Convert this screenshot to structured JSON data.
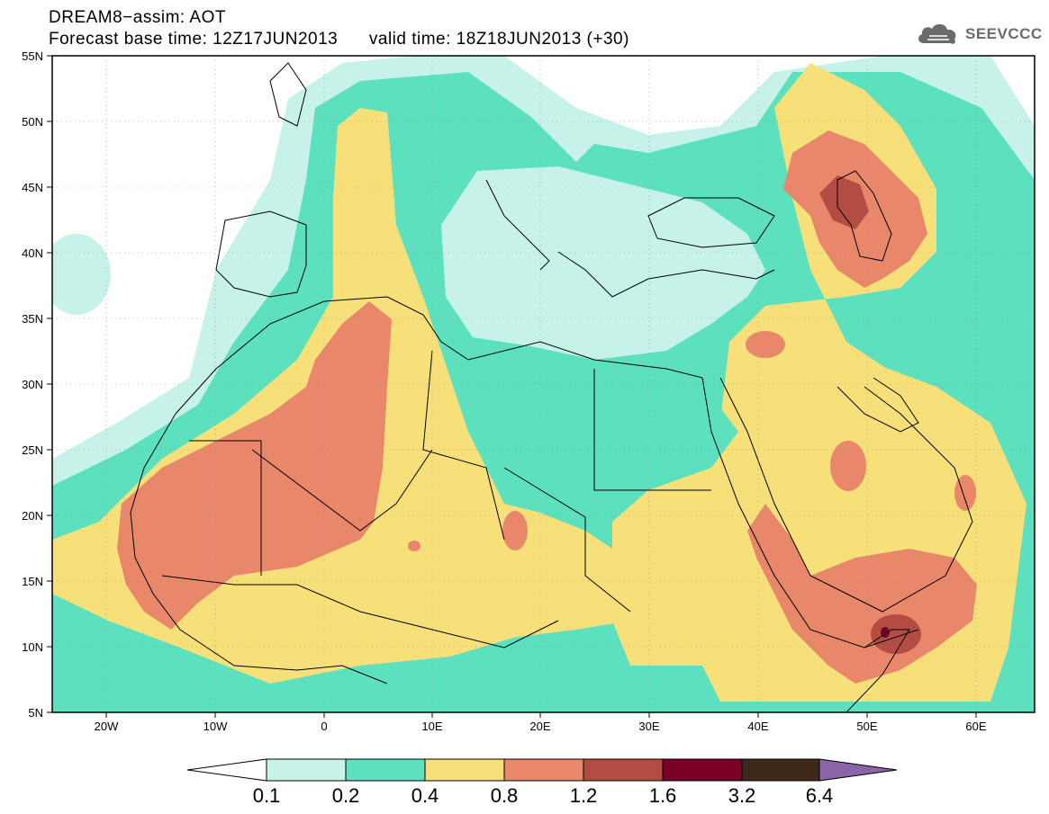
{
  "title": {
    "line1": "DREAM8−assim: AOT",
    "line2": "Forecast base time: 12Z17JUN2013      valid time: 18Z18JUN2013 (+30)"
  },
  "logo": {
    "text": "SEEVCCC",
    "icon": "cloud-icon"
  },
  "map": {
    "lon_range": [
      -25,
      65
    ],
    "lat_range": [
      5,
      55
    ],
    "lon_ticks": [
      "20W",
      "10W",
      "0",
      "10E",
      "20E",
      "30E",
      "40E",
      "50E",
      "60E"
    ],
    "lat_ticks": [
      "55N",
      "50N",
      "45N",
      "40N",
      "35N",
      "30N",
      "25N",
      "20N",
      "15N",
      "10N",
      "5N"
    ]
  },
  "colorbar": {
    "labels": [
      "0.1",
      "0.2",
      "0.4",
      "0.8",
      "1.2",
      "1.6",
      "3.2",
      "6.4"
    ],
    "colors": [
      "#ffffff",
      "#c6f2ea",
      "#5de0be",
      "#f7e07a",
      "#e8876a",
      "#b34d43",
      "#7a0026",
      "#3d2a1a",
      "#8b64a8"
    ]
  }
}
